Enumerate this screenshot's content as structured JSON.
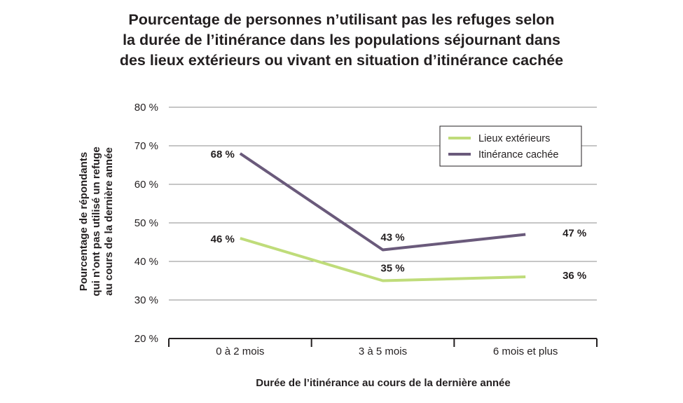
{
  "chart_data": {
    "type": "line",
    "title_lines": [
      "Pourcentage de personnes n’utilisant pas les refuges selon",
      "la durée de l’itinérance dans les populations séjournant dans",
      "des lieux extérieurs ou vivant en situation d’itinérance cachée"
    ],
    "categories": [
      "0 à 2 mois",
      "3 à 5 mois",
      "6 mois et plus"
    ],
    "series": [
      {
        "name": "Lieux extérieurs",
        "values": [
          46,
          35,
          36
        ],
        "labels": [
          "46 %",
          "35 %",
          "36 %"
        ],
        "color": "#bfdc7a"
      },
      {
        "name": "Itinérance cachée",
        "values": [
          68,
          43,
          47
        ],
        "labels": [
          "68 %",
          "43 %",
          "47 %"
        ],
        "color": "#6a5a7b"
      }
    ],
    "xlabel": "Durée de l’itinérance au cours de la dernière année",
    "ylabel_lines": [
      "Pourcentage de répondants",
      "qui n’ont pas utilisé un refuge",
      "au cours de la dernière année"
    ],
    "ylim": [
      20,
      80
    ],
    "yticks": [
      20,
      30,
      40,
      50,
      60,
      70,
      80
    ],
    "ytick_labels": [
      "20 %",
      "30 %",
      "40 %",
      "50 %",
      "60 %",
      "70 %",
      "80 %"
    ],
    "grid": true,
    "legend_position": "top-right",
    "gridline_color": "#8c8c8c",
    "axis_color": "#231f20"
  }
}
